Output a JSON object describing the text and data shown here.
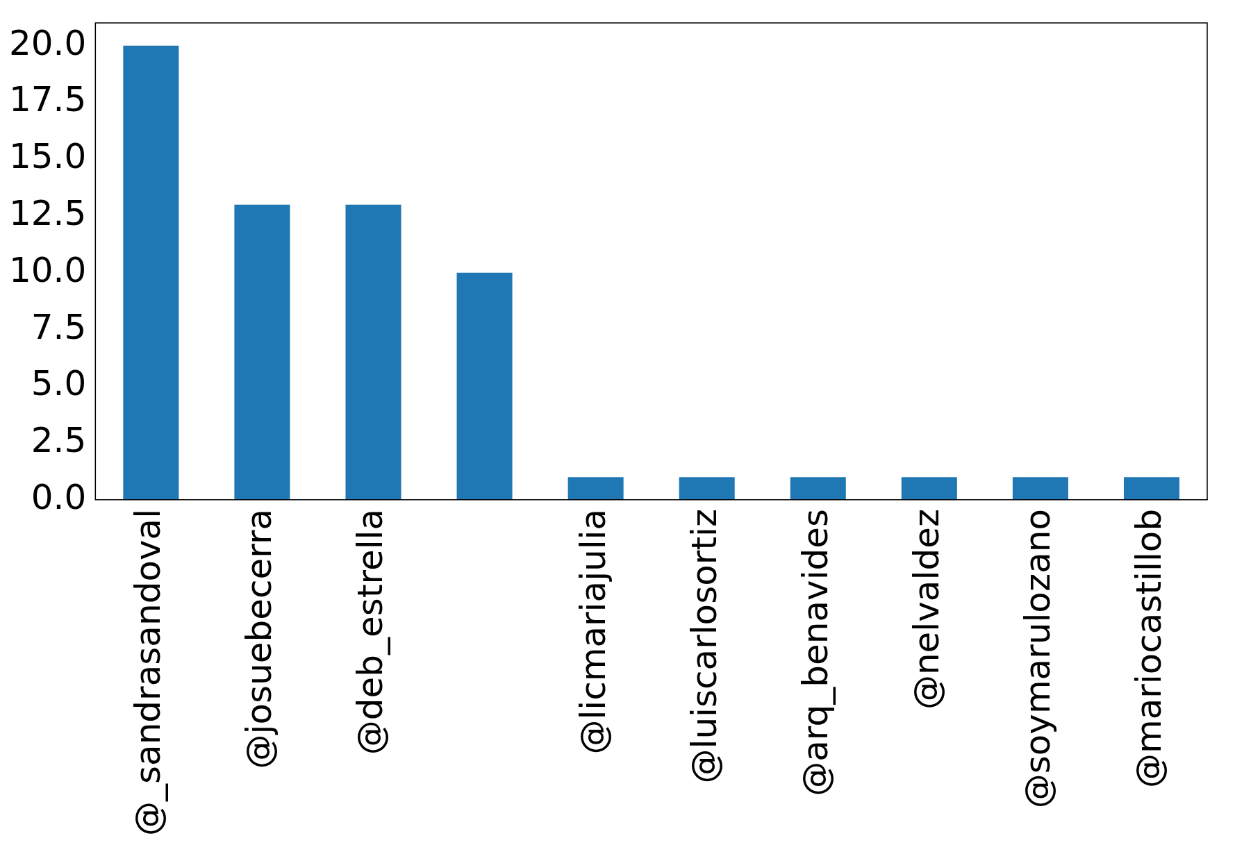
{
  "chart_data": {
    "type": "bar",
    "categories": [
      "@_sandrasandoval",
      "@josuebecerra",
      "@deb_estrella",
      null,
      "@licmariajulia",
      "@luiscarlosortiz",
      "@arq_benavides",
      "@nelvaldez",
      "@soymarulozano",
      "@mariocastillob"
    ],
    "values": [
      20,
      13,
      13,
      10,
      1,
      1,
      1,
      1,
      1,
      1
    ],
    "color": "#1f77b4",
    "ylim": [
      0,
      21
    ],
    "yticks": [
      {
        "value": 0,
        "label": "0.0"
      },
      {
        "value": 2.5,
        "label": "2.5"
      },
      {
        "value": 5,
        "label": "5.0"
      },
      {
        "value": 7.5,
        "label": "7.5"
      },
      {
        "value": 10,
        "label": "10.0"
      },
      {
        "value": 12.5,
        "label": "12.5"
      },
      {
        "value": 15,
        "label": "15.0"
      },
      {
        "value": 17.5,
        "label": "17.5"
      },
      {
        "value": 20,
        "label": "20.0"
      }
    ],
    "grid": false,
    "legend": false
  }
}
